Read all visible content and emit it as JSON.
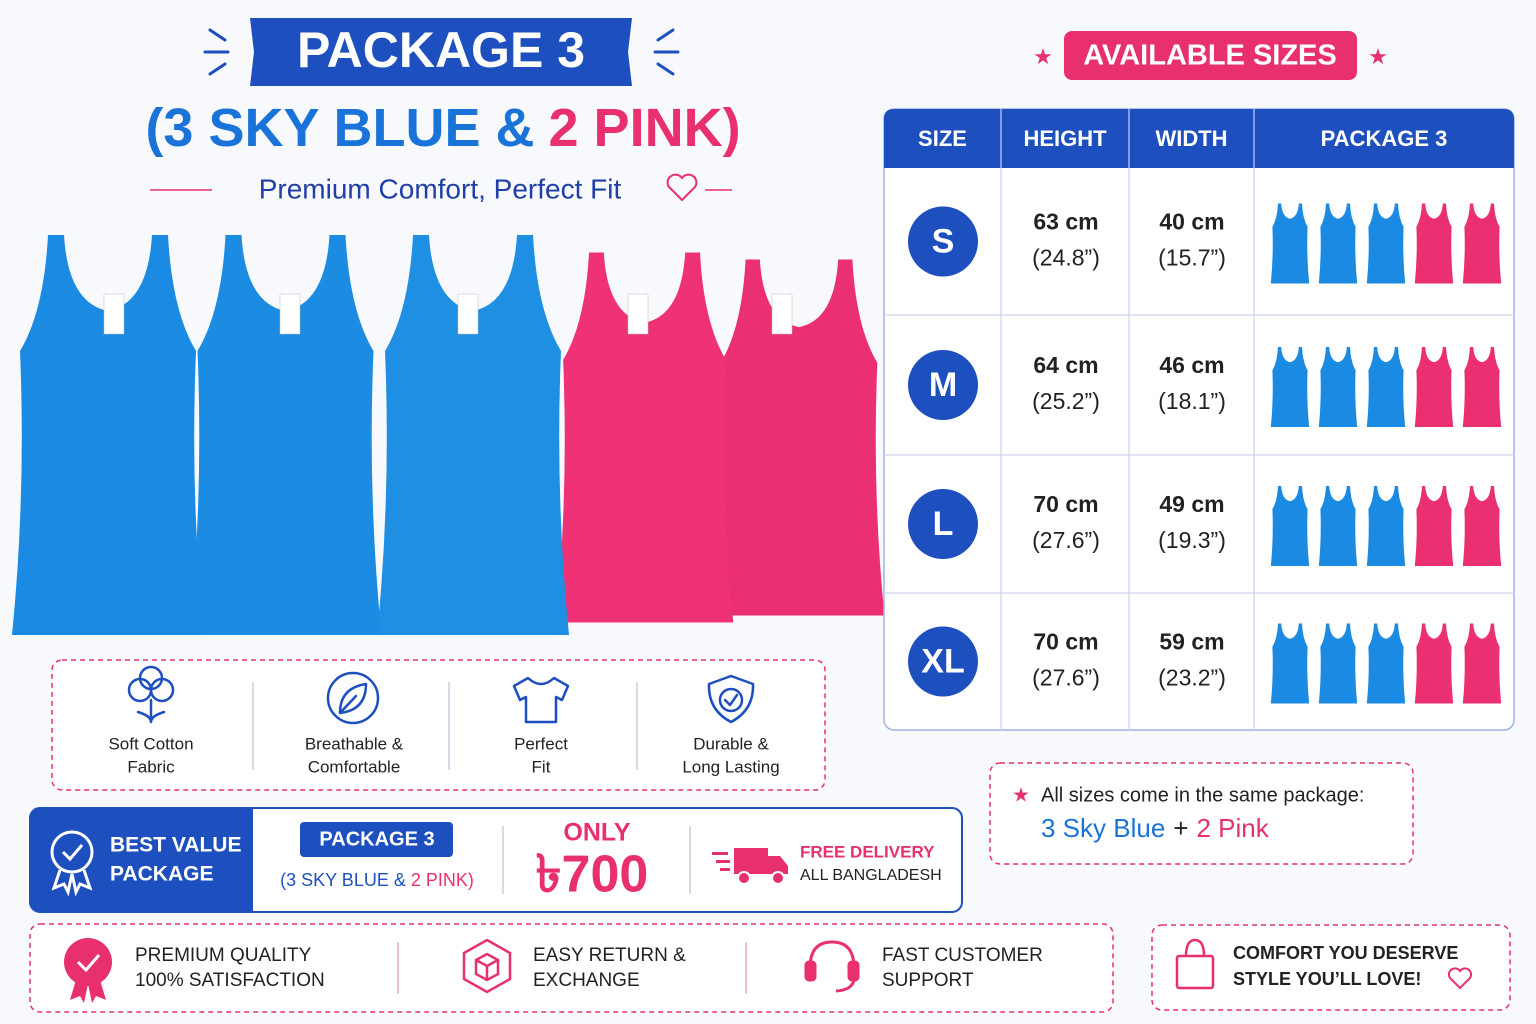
{
  "header": {
    "title": "PACKAGE 3",
    "subtitle_blue": "(3 SKY BLUE &",
    "subtitle_pink": "2 PINK)",
    "tagline": "Premium Comfort, Perfect Fit"
  },
  "features": [
    {
      "lines": [
        "Soft Cotton",
        "Fabric"
      ]
    },
    {
      "lines": [
        "Breathable &",
        "Comfortable"
      ]
    },
    {
      "lines": [
        "Perfect",
        "Fit"
      ]
    },
    {
      "lines": [
        "Durable &",
        "Long Lasting"
      ]
    }
  ],
  "offer": {
    "badge": [
      "BEST VALUE",
      "PACKAGE"
    ],
    "package": "PACKAGE 3",
    "detail_blue": "(3 SKY BLUE &",
    "detail_pink": "2 PINK)",
    "only": "ONLY",
    "price": "৳700",
    "delivery": [
      "FREE DELIVERY",
      "ALL BANGLADESH"
    ]
  },
  "guarantees": [
    {
      "lines": [
        "PREMIUM QUALITY",
        "100% SATISFACTION"
      ]
    },
    {
      "lines": [
        "EASY RETURN &",
        "EXCHANGE"
      ]
    },
    {
      "lines": [
        "FAST CUSTOMER",
        "SUPPORT"
      ]
    }
  ],
  "sizes": {
    "title": "AVAILABLE SIZES",
    "headers": [
      "SIZE",
      "HEIGHT",
      "WIDTH",
      "PACKAGE 3"
    ],
    "rows": [
      {
        "size": "S",
        "height": "63 cm",
        "height_in": "(24.8”)",
        "width": "40 cm",
        "width_in": "(15.7”)"
      },
      {
        "size": "M",
        "height": "64 cm",
        "height_in": "(25.2”)",
        "width": "46 cm",
        "width_in": "(18.1”)"
      },
      {
        "size": "L",
        "height": "70 cm",
        "height_in": "(27.6”)",
        "width": "49 cm",
        "width_in": "(19.3”)"
      },
      {
        "size": "XL",
        "height": "70 cm",
        "height_in": "(27.6”)",
        "width": "59 cm",
        "width_in": "(23.2”)"
      }
    ]
  },
  "note": {
    "text": "All sizes come in the same package:",
    "blue": "3 Sky Blue",
    "plus": "+",
    "pink": "2 Pink"
  },
  "slogan": [
    "COMFORT YOU DESERVE",
    "STYLE YOU’LL LOVE!"
  ]
}
